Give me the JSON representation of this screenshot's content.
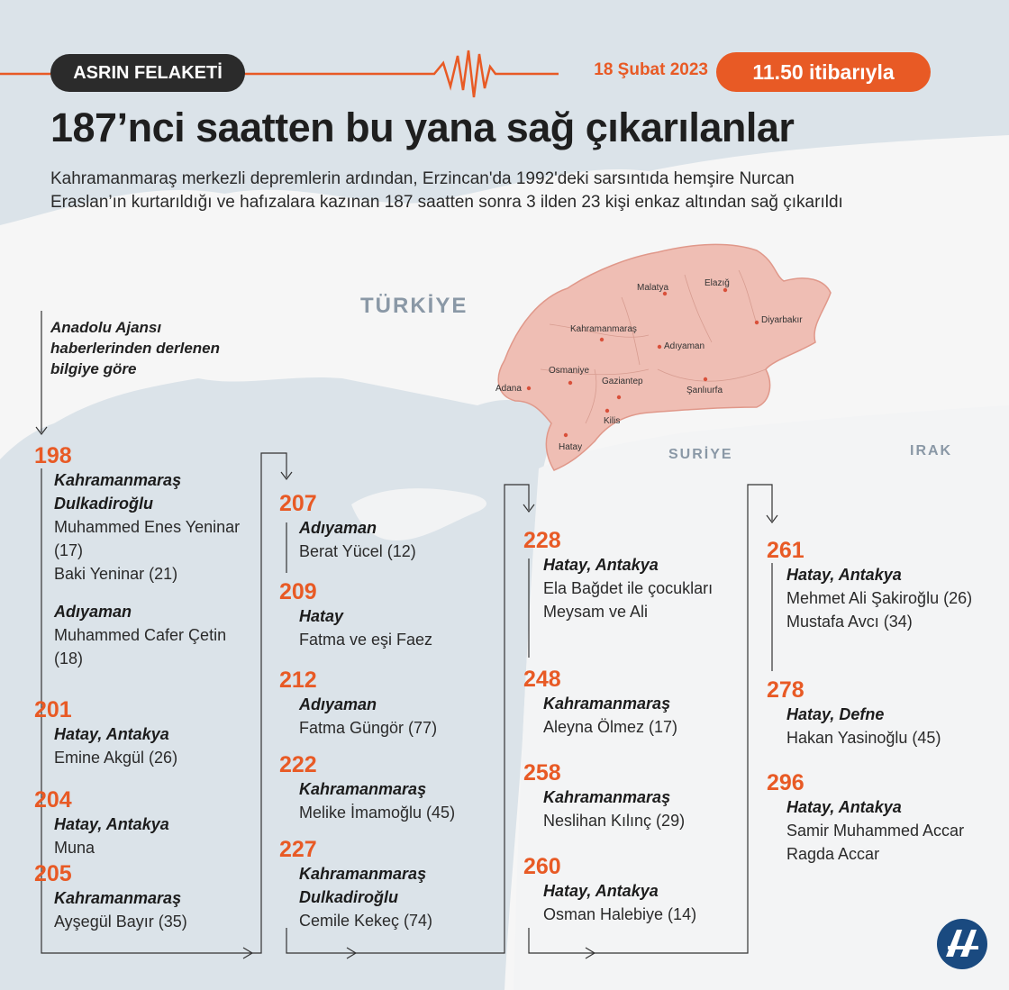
{
  "header": {
    "tag": "ASRIN FELAKETİ",
    "date": "18 Şubat 2023",
    "time_badge": "11.50 itibarıyla",
    "title": "187’nci saatten bu yana sağ çıkarılanlar",
    "subtitle": "Kahramanmaraş merkezli depremlerin ardından, Erzincan'da 1992'deki sarsıntıda hemşire Nurcan Eraslan’ın kurtarıldığı ve hafızalara kazınan 187 saatten sonra 3 ilden 23 kişi enkaz altından sağ çıkarıldı",
    "source": "Anadolu Ajansı haberlerinden derlenen bilgiye göre"
  },
  "map": {
    "countries": {
      "turkiye": "TÜRKİYE",
      "suriye": "SURİYE",
      "irak": "IRAK"
    },
    "cities": {
      "malatya": "Malatya",
      "elazig": "Elazığ",
      "diyarbakir": "Diyarbakır",
      "kahramanmaras": "Kahramanmaraş",
      "adiyaman": "Adıyaman",
      "osmaniye": "Osmaniye",
      "adana": "Adana",
      "gaziantep": "Gaziantep",
      "sanliurfa": "Şanlıurfa",
      "kilis": "Kilis",
      "hatay": "Hatay"
    },
    "colors": {
      "sea": "#dbe3e9",
      "land": "#f6f6f6",
      "region": "#efbeb4",
      "region_border": "#e0988a",
      "marker": "#d9503a"
    }
  },
  "timeline": {
    "accent_color": "#e85a25",
    "columns": [
      [
        {
          "hour": "198",
          "groups": [
            {
              "location": "Kahramanmaraş Dulkadiroğlu",
              "names": [
                "Muhammed Enes Yeninar (17)",
                "Baki Yeninar (21)"
              ]
            },
            {
              "location": "Adıyaman",
              "names": [
                "Muhammed Cafer Çetin (18)"
              ]
            }
          ]
        },
        {
          "hour": "201",
          "groups": [
            {
              "location": "Hatay, Antakya",
              "names": [
                "Emine Akgül (26)"
              ]
            }
          ]
        },
        {
          "hour": "204",
          "groups": [
            {
              "location": "Hatay, Antakya",
              "names": [
                "Muna"
              ]
            }
          ]
        },
        {
          "hour": "205",
          "groups": [
            {
              "location": "Kahramanmaraş",
              "names": [
                "Ayşegül Bayır (35)"
              ]
            }
          ]
        }
      ],
      [
        {
          "hour": "207",
          "groups": [
            {
              "location": "Adıyaman",
              "names": [
                "Berat Yücel (12)"
              ]
            }
          ]
        },
        {
          "hour": "209",
          "groups": [
            {
              "location": "Hatay",
              "names": [
                "Fatma ve eşi Faez"
              ]
            }
          ]
        },
        {
          "hour": "212",
          "groups": [
            {
              "location": "Adıyaman",
              "names": [
                "Fatma Güngör (77)"
              ]
            }
          ]
        },
        {
          "hour": "222",
          "groups": [
            {
              "location": "Kahramanmaraş",
              "names": [
                "Melike İmamoğlu (45)"
              ]
            }
          ]
        },
        {
          "hour": "227",
          "groups": [
            {
              "location": "Kahramanmaraş Dulkadiroğlu",
              "names": [
                "Cemile Kekeç (74)"
              ]
            }
          ]
        }
      ],
      [
        {
          "hour": "228",
          "groups": [
            {
              "location": "Hatay, Antakya",
              "names": [
                "Ela Bağdet ile çocukları Meysam ve Ali"
              ]
            }
          ]
        },
        {
          "hour": "248",
          "groups": [
            {
              "location": "Kahramanmaraş",
              "names": [
                "Aleyna Ölmez (17)"
              ]
            }
          ]
        },
        {
          "hour": "258",
          "groups": [
            {
              "location": "Kahramanmaraş",
              "names": [
                "Neslihan Kılınç (29)"
              ]
            }
          ]
        },
        {
          "hour": "260",
          "groups": [
            {
              "location": "Hatay, Antakya",
              "names": [
                "Osman Halebiye (14)"
              ]
            }
          ]
        }
      ],
      [
        {
          "hour": "261",
          "groups": [
            {
              "location": "Hatay, Antakya",
              "names": [
                "Mehmet Ali Şakiroğlu (26)",
                "Mustafa Avcı (34)"
              ]
            }
          ]
        },
        {
          "hour": "278",
          "groups": [
            {
              "location": "Hatay, Defne",
              "names": [
                "Hakan Yasinoğlu (45)"
              ]
            }
          ]
        },
        {
          "hour": "296",
          "groups": [
            {
              "location": "Hatay, Antakya",
              "names": [
                "Samir Muhammed Accar",
                "Ragda Accar"
              ]
            }
          ]
        }
      ]
    ]
  },
  "logo": {
    "icon": "aa-logo-icon",
    "color": "#1a4a80"
  }
}
